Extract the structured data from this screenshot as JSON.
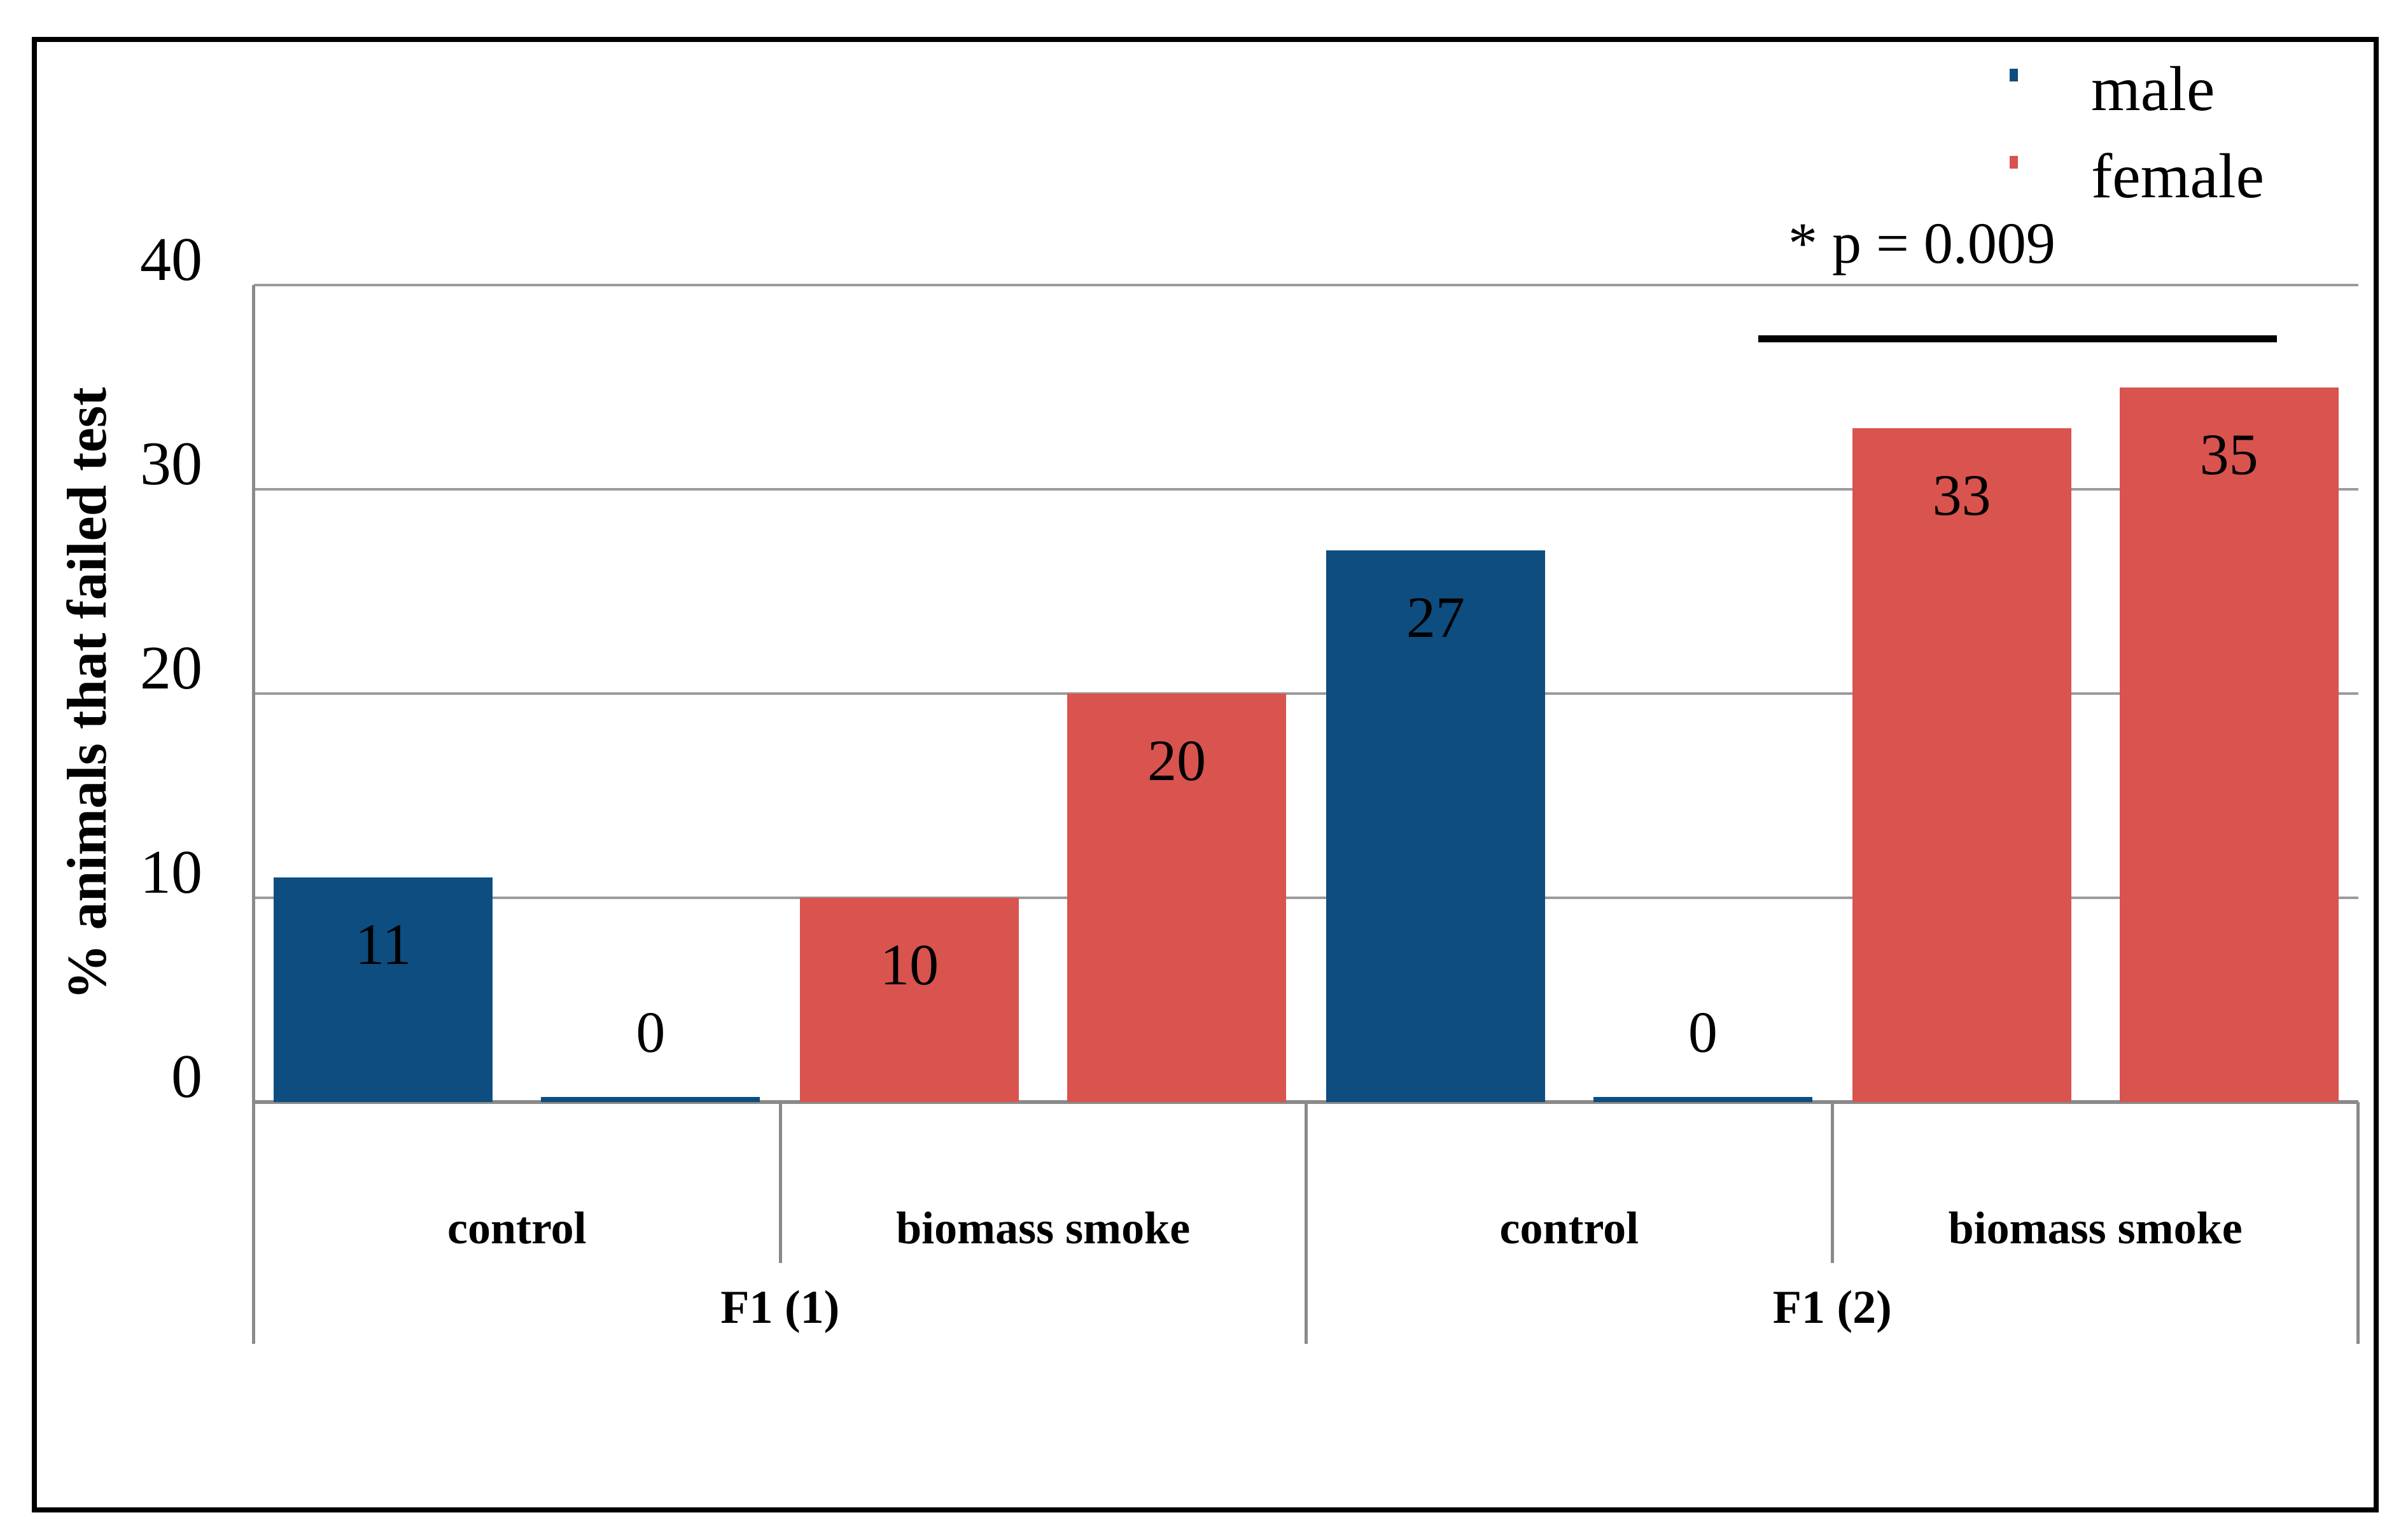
{
  "figure": {
    "background": "#ffffff",
    "border_color": "#000000"
  },
  "palette": {
    "male_blue": "#0d4d80",
    "female_red": "#d9534f",
    "gridline_gray": "#9b9b9b",
    "axis_gray": "#8a8a8a",
    "significance_line": "#000000",
    "text": "#000000"
  },
  "legend": {
    "items": [
      {
        "label": "male",
        "color": "#0d4d80"
      },
      {
        "label": "female",
        "color": "#d9534f"
      }
    ]
  },
  "annotation": {
    "p_value_label": "* p = 0.009"
  },
  "chart_data": {
    "type": "bar",
    "title": "",
    "xlabel": "",
    "ylabel": "% animals that failed test",
    "ylim": [
      0,
      40
    ],
    "yticks": [
      0,
      10,
      20,
      30,
      40
    ],
    "grid": true,
    "legend_entries": [
      "male",
      "female"
    ],
    "legend_position": "top-right",
    "significance": {
      "label": "* p = 0.009",
      "line_over": "F1 (2) biomass smoke bars"
    },
    "groups": [
      {
        "label": "F1 (1)",
        "conditions": [
          {
            "label": "control",
            "bars": [
              {
                "series": "male",
                "value": 11,
                "data_label": "11",
                "color": "#0d4d80"
              },
              {
                "series": "female",
                "value": 0,
                "data_label": "0",
                "color": "#0d4d80"
              }
            ]
          },
          {
            "label": "biomass smoke",
            "bars": [
              {
                "series": "male",
                "value": 10,
                "data_label": "10",
                "color": "#d9534f"
              },
              {
                "series": "female",
                "value": 20,
                "data_label": "20",
                "color": "#d9534f"
              }
            ]
          }
        ]
      },
      {
        "label": "F1 (2)",
        "conditions": [
          {
            "label": "control",
            "bars": [
              {
                "series": "male",
                "value": 27,
                "data_label": "27",
                "color": "#0d4d80"
              },
              {
                "series": "female",
                "value": 0,
                "data_label": "0",
                "color": "#0d4d80"
              }
            ]
          },
          {
            "label": "biomass smoke",
            "bars": [
              {
                "series": "male",
                "value": 33,
                "data_label": "33",
                "color": "#d9534f"
              },
              {
                "series": "female",
                "value": 35,
                "data_label": "35",
                "color": "#d9534f"
              }
            ]
          }
        ]
      }
    ]
  }
}
